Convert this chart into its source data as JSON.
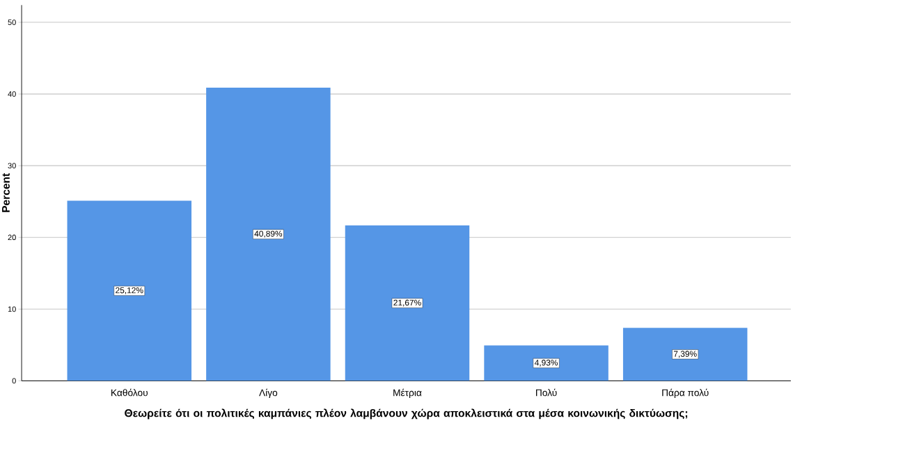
{
  "chart_data": {
    "type": "bar",
    "xlabel": "Θεωρείτε ότι οι πολιτικές καμπάνιες πλέον λαμβάνουν χώρα αποκλειστικά στα μέσα κοινωνικής δικτύωσης;",
    "ylabel": "Percent",
    "categories": [
      "Καθόλου",
      "Λίγο",
      "Μέτρια",
      "Πολύ",
      "Πάρα πολύ"
    ],
    "values": [
      25.12,
      40.89,
      21.67,
      4.93,
      7.39
    ],
    "value_labels": [
      "25,12%",
      "40,89%",
      "21,67%",
      "4,93%",
      "7,39%"
    ],
    "color": "#5596e6",
    "ylim": [
      0,
      52.4
    ],
    "yticks": [
      0,
      10,
      20,
      30,
      40,
      50
    ],
    "grid": "y"
  }
}
